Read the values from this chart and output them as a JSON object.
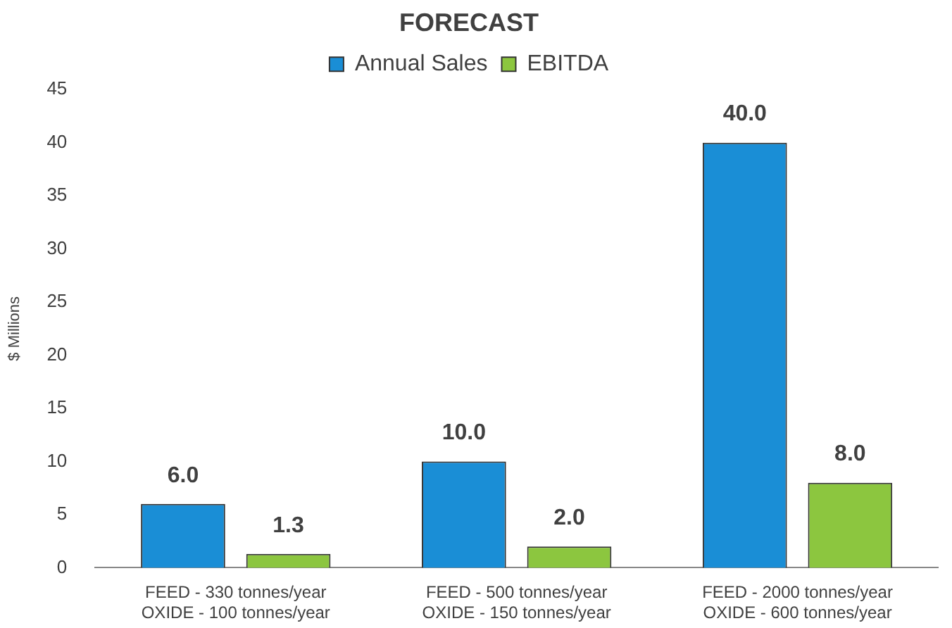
{
  "chart_data": {
    "type": "bar",
    "title": "FORECAST",
    "ylabel": "$ Millions",
    "categories": [
      "FEED - 330 tonnes/year\nOXIDE - 100 tonnes/year",
      "FEED - 500 tonnes/year\nOXIDE - 150 tonnes/year",
      "FEED - 2000 tonnes/year\nOXIDE - 600 tonnes/year"
    ],
    "series": [
      {
        "name": "Annual Sales",
        "color": "#1a8ed6",
        "values": [
          6.0,
          10.0,
          40.0
        ],
        "value_labels": [
          "6.0",
          "10.0",
          "40.0"
        ]
      },
      {
        "name": "EBITDA",
        "color": "#8cc63f",
        "values": [
          1.3,
          2.0,
          8.0
        ],
        "value_labels": [
          "1.3",
          "2.0",
          "8.0"
        ]
      }
    ],
    "ylim": [
      0,
      45
    ],
    "yticks": [
      0,
      5,
      10,
      15,
      20,
      25,
      30,
      35,
      40,
      45
    ],
    "grid": false,
    "legend": "top"
  }
}
